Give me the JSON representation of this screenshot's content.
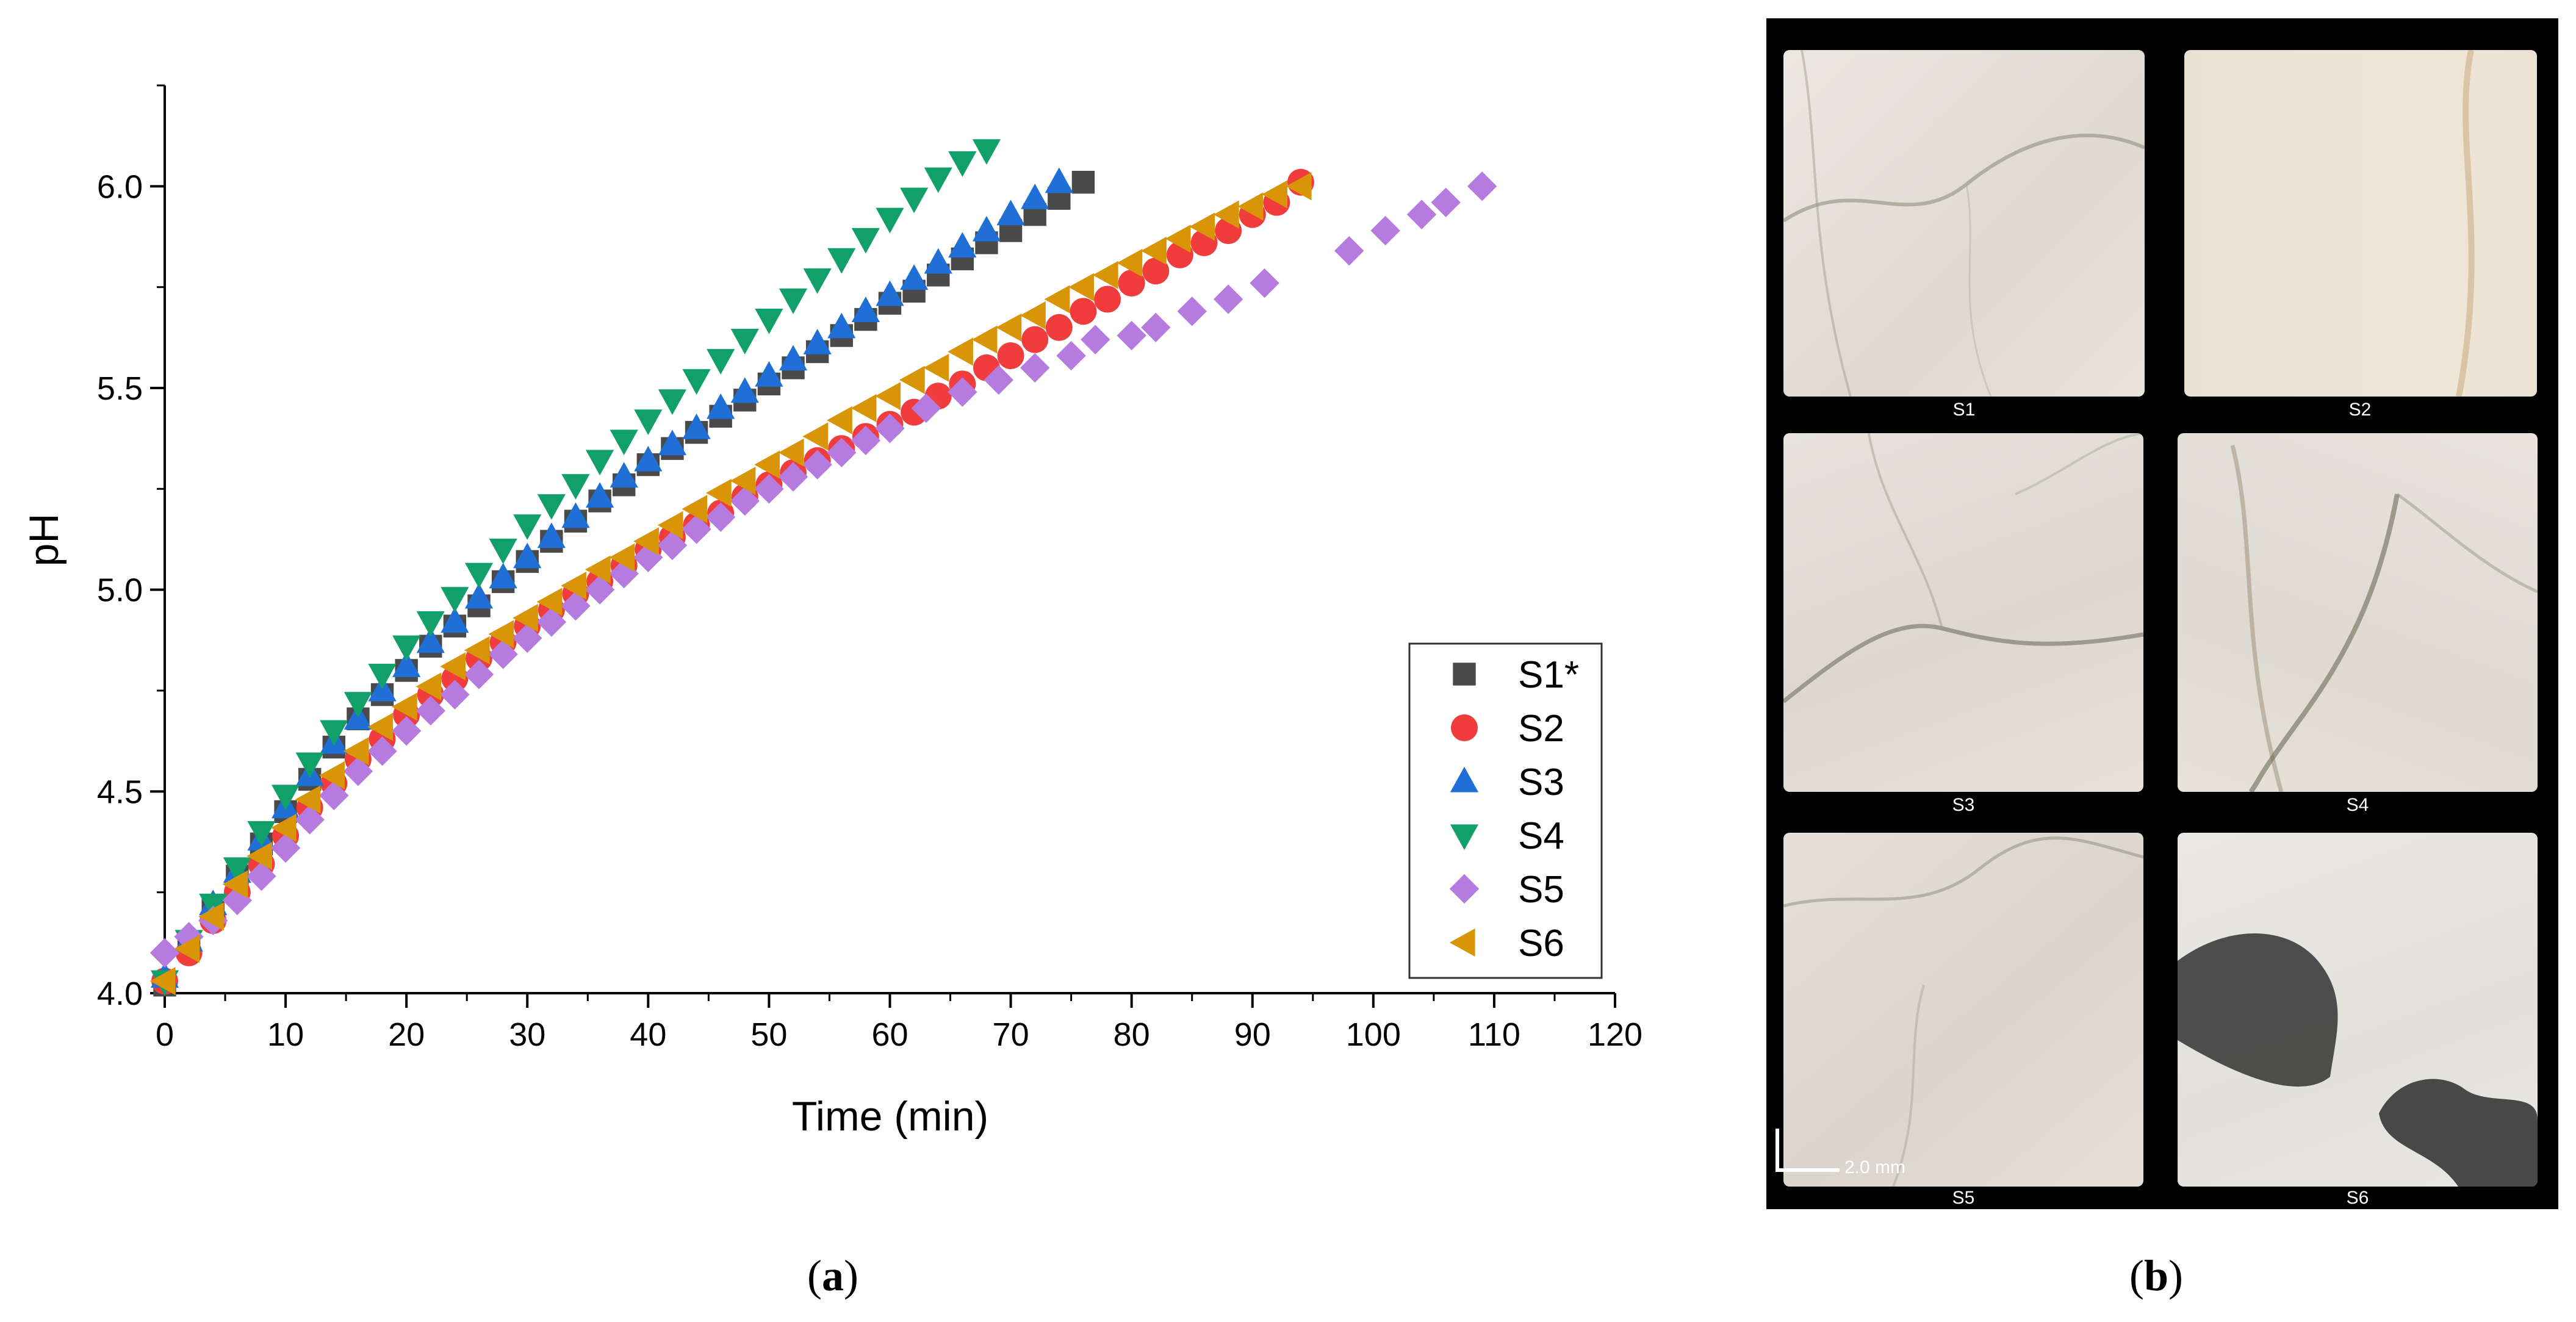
{
  "panel_a_label": "a",
  "panel_b_label": "b",
  "chart_data": {
    "type": "scatter",
    "title": "",
    "xlabel": "Time (min)",
    "ylabel": "pH",
    "xlim": [
      0,
      120
    ],
    "ylim": [
      4.0,
      6.25
    ],
    "xticks": [
      0,
      10,
      20,
      30,
      40,
      50,
      60,
      70,
      80,
      90,
      100,
      110,
      120
    ],
    "yticks": [
      4.0,
      4.5,
      5.0,
      5.5,
      6.0
    ],
    "xtick_labels": [
      "0",
      "10",
      "20",
      "30",
      "40",
      "50",
      "60",
      "70",
      "80",
      "90",
      "100",
      "110",
      "120"
    ],
    "ytick_labels": [
      "4.0",
      "4.5",
      "5.0",
      "5.5",
      "6.0"
    ],
    "legend_position": "bottom-right",
    "series": [
      {
        "name": "S1*",
        "marker": "square",
        "color": "#4a4a4a",
        "x": [
          0,
          2,
          4,
          6,
          8,
          10,
          12,
          14,
          16,
          18,
          20,
          22,
          24,
          26,
          28,
          30,
          32,
          34,
          36,
          38,
          40,
          42,
          44,
          46,
          48,
          50,
          52,
          54,
          56,
          58,
          60,
          62,
          64,
          66,
          68,
          70,
          72,
          74,
          76
        ],
        "y": [
          4.02,
          4.12,
          4.21,
          4.29,
          4.37,
          4.45,
          4.53,
          4.61,
          4.68,
          4.74,
          4.8,
          4.86,
          4.91,
          4.96,
          5.02,
          5.07,
          5.12,
          5.17,
          5.22,
          5.26,
          5.31,
          5.35,
          5.39,
          5.43,
          5.47,
          5.51,
          5.55,
          5.59,
          5.63,
          5.67,
          5.71,
          5.74,
          5.78,
          5.82,
          5.86,
          5.89,
          5.93,
          5.97,
          6.01
        ]
      },
      {
        "name": "S2",
        "marker": "circle",
        "color": "#f03c3c",
        "x": [
          0,
          2,
          4,
          6,
          8,
          10,
          12,
          14,
          16,
          18,
          20,
          22,
          24,
          26,
          28,
          30,
          32,
          34,
          36,
          38,
          40,
          42,
          44,
          46,
          48,
          50,
          52,
          54,
          56,
          58,
          60,
          62,
          64,
          66,
          68,
          70,
          72,
          74,
          76,
          78,
          80,
          82,
          84,
          86,
          88,
          90,
          92,
          94
        ],
        "y": [
          4.03,
          4.1,
          4.18,
          4.25,
          4.32,
          4.39,
          4.46,
          4.52,
          4.58,
          4.63,
          4.69,
          4.74,
          4.78,
          4.83,
          4.87,
          4.91,
          4.95,
          4.99,
          5.02,
          5.06,
          5.1,
          5.13,
          5.16,
          5.19,
          5.23,
          5.26,
          5.29,
          5.32,
          5.35,
          5.38,
          5.41,
          5.44,
          5.48,
          5.51,
          5.55,
          5.58,
          5.62,
          5.65,
          5.69,
          5.72,
          5.76,
          5.79,
          5.83,
          5.86,
          5.89,
          5.93,
          5.96,
          6.01
        ]
      },
      {
        "name": "S3",
        "marker": "triangle-up",
        "color": "#1f6fd6",
        "x": [
          0,
          2,
          4,
          6,
          8,
          10,
          12,
          14,
          16,
          18,
          20,
          22,
          24,
          26,
          28,
          30,
          32,
          34,
          36,
          38,
          40,
          42,
          44,
          46,
          48,
          50,
          52,
          54,
          56,
          58,
          60,
          62,
          64,
          66,
          68,
          70,
          72,
          74
        ],
        "y": [
          4.04,
          4.13,
          4.22,
          4.3,
          4.38,
          4.46,
          4.54,
          4.62,
          4.68,
          4.75,
          4.81,
          4.87,
          4.92,
          4.98,
          5.03,
          5.08,
          5.13,
          5.18,
          5.23,
          5.28,
          5.32,
          5.36,
          5.4,
          5.45,
          5.49,
          5.53,
          5.57,
          5.61,
          5.65,
          5.69,
          5.73,
          5.77,
          5.81,
          5.85,
          5.89,
          5.93,
          5.97,
          6.01
        ]
      },
      {
        "name": "S4",
        "marker": "triangle-down",
        "color": "#12a06a",
        "x": [
          0,
          2,
          4,
          6,
          8,
          10,
          12,
          14,
          16,
          18,
          20,
          22,
          24,
          26,
          28,
          30,
          32,
          34,
          36,
          38,
          40,
          42,
          44,
          46,
          48,
          50,
          52,
          54,
          56,
          58,
          60,
          62,
          64,
          66,
          68
        ],
        "y": [
          4.03,
          4.13,
          4.22,
          4.31,
          4.4,
          4.49,
          4.57,
          4.65,
          4.72,
          4.79,
          4.86,
          4.92,
          4.98,
          5.04,
          5.1,
          5.16,
          5.21,
          5.26,
          5.32,
          5.37,
          5.42,
          5.47,
          5.52,
          5.57,
          5.62,
          5.67,
          5.72,
          5.77,
          5.82,
          5.87,
          5.92,
          5.97,
          6.02,
          6.06,
          6.09
        ]
      },
      {
        "name": "S5",
        "marker": "diamond",
        "color": "#b57bdf",
        "x": [
          0,
          2,
          4,
          6,
          8,
          10,
          12,
          14,
          16,
          18,
          20,
          22,
          24,
          26,
          28,
          30,
          32,
          34,
          36,
          38,
          40,
          42,
          44,
          46,
          48,
          50,
          52,
          54,
          56,
          58,
          60,
          63,
          66,
          69,
          72,
          75,
          77,
          80,
          82,
          85,
          88,
          91,
          98,
          101,
          104,
          106,
          109
        ],
        "y": [
          4.1,
          4.14,
          4.18,
          4.23,
          4.29,
          4.36,
          4.43,
          4.49,
          4.55,
          4.6,
          4.65,
          4.7,
          4.74,
          4.79,
          4.84,
          4.88,
          4.92,
          4.96,
          5.0,
          5.04,
          5.08,
          5.11,
          5.15,
          5.18,
          5.22,
          5.25,
          5.28,
          5.31,
          5.34,
          5.37,
          5.4,
          5.45,
          5.49,
          5.52,
          5.55,
          5.58,
          5.62,
          5.63,
          5.65,
          5.69,
          5.72,
          5.76,
          5.84,
          5.89,
          5.93,
          5.96,
          6.0
        ]
      },
      {
        "name": "S6",
        "marker": "triangle-left",
        "color": "#d99508",
        "x": [
          0,
          2,
          4,
          6,
          8,
          10,
          12,
          14,
          16,
          18,
          20,
          22,
          24,
          26,
          28,
          30,
          32,
          34,
          36,
          38,
          40,
          42,
          44,
          46,
          48,
          50,
          52,
          54,
          56,
          58,
          60,
          62,
          64,
          66,
          68,
          70,
          72,
          74,
          76,
          78,
          80,
          82,
          84,
          86,
          88,
          90,
          92,
          94
        ],
        "y": [
          4.03,
          4.11,
          4.19,
          4.27,
          4.34,
          4.41,
          4.48,
          4.54,
          4.6,
          4.66,
          4.71,
          4.76,
          4.81,
          4.85,
          4.89,
          4.93,
          4.97,
          5.01,
          5.05,
          5.08,
          5.12,
          5.16,
          5.2,
          5.24,
          5.27,
          5.31,
          5.34,
          5.38,
          5.42,
          5.45,
          5.48,
          5.52,
          5.55,
          5.59,
          5.62,
          5.65,
          5.68,
          5.72,
          5.75,
          5.78,
          5.81,
          5.84,
          5.87,
          5.9,
          5.93,
          5.95,
          5.98,
          6.0
        ]
      }
    ]
  },
  "photo_panel": {
    "sample_labels": [
      "S1",
      "S2",
      "S3",
      "S4",
      "S5",
      "S6"
    ],
    "scale_bar_label": "2.0 mm",
    "stone_color": "#e6e2da",
    "background_color": "#000000"
  }
}
